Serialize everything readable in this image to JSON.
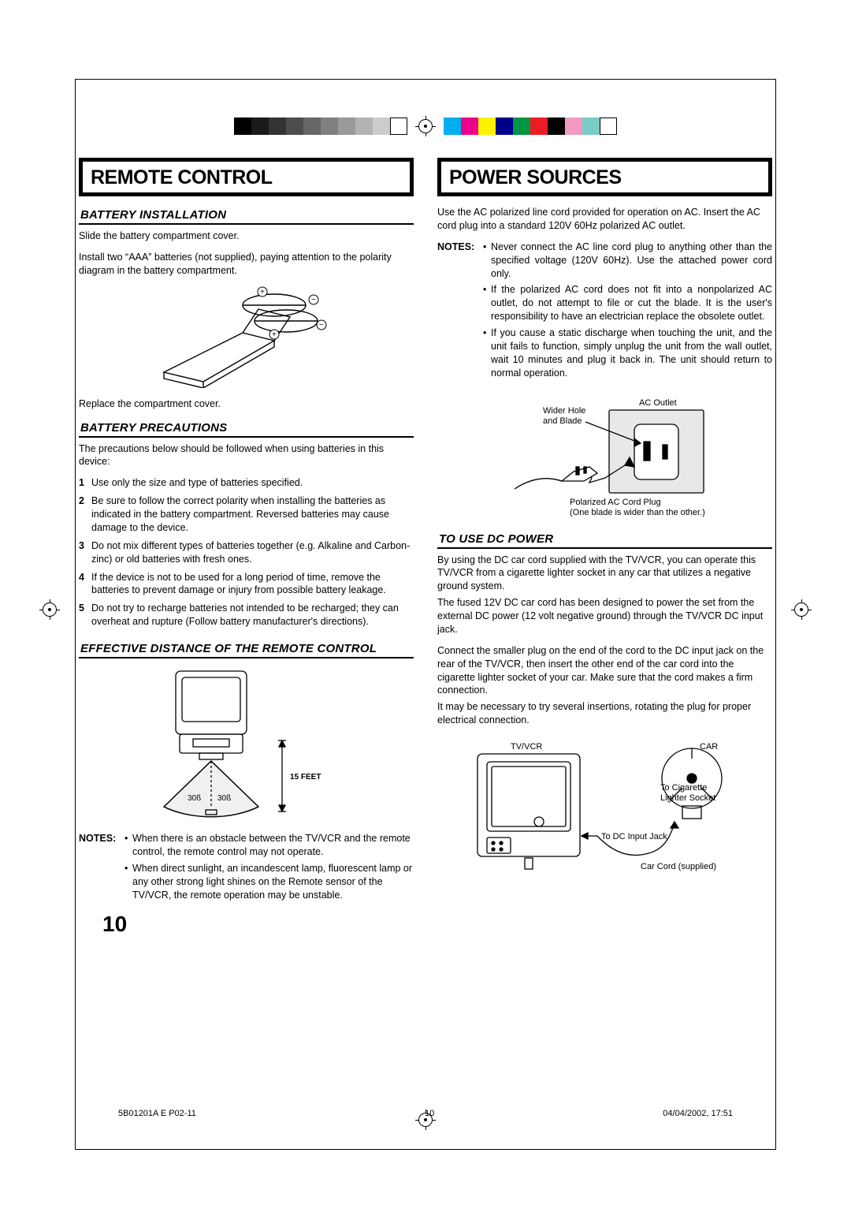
{
  "regbars_gray": [
    "#000000",
    "#1a1a1a",
    "#333333",
    "#4d4d4d",
    "#666666",
    "#808080",
    "#999999",
    "#b3b3b3",
    "#cccccc",
    "#ffffff"
  ],
  "regbars_color": [
    "#00aeef",
    "#ec008c",
    "#fff200",
    "#00008b",
    "#009444",
    "#ed1c24",
    "#000000",
    "#f49ac1",
    "#7accc8",
    "#ffffff"
  ],
  "left": {
    "title": "REMOTE CONTROL",
    "s1": {
      "heading": "BATTERY INSTALLATION",
      "p1": "Slide the battery compartment cover.",
      "p2": "Install two “AAA” batteries (not supplied), paying attention to the polarity diagram in the battery compartment.",
      "p3": "Replace the compartment cover."
    },
    "s2": {
      "heading": "BATTERY PRECAUTIONS",
      "intro": "The precautions below should be followed when using batteries in this device:",
      "items": [
        "Use only the size and type of batteries specified.",
        "Be sure to follow the correct polarity when installing the batteries as indicated in the battery compartment. Reversed batteries may cause damage to the device.",
        "Do not mix different types of batteries together (e.g. Alkaline and Carbon-zinc) or old batteries with fresh ones.",
        "If the device is not to be used for a long period of time, remove the batteries to prevent damage or injury from possible battery leakage.",
        "Do not try to recharge batteries not intended to be recharged; they can overheat and rupture (Follow battery manufacturer's directions)."
      ]
    },
    "s3": {
      "heading": "EFFECTIVE DISTANCE OF THE REMOTE CONTROL",
      "fig": {
        "angle_l": "30ß",
        "angle_r": "30ß",
        "dist": "15 FEET"
      },
      "notes": [
        "When there is an obstacle between the TV/VCR and the remote control, the remote control may not operate.",
        "When direct sunlight, an incandescent lamp, fluorescent lamp or any other strong light shines on the Remote sensor of the TV/VCR, the remote operation may be unstable."
      ]
    }
  },
  "right": {
    "title": "POWER SOURCES",
    "p1": "Use the AC polarized line cord provided for operation on AC. Insert the AC cord plug into a standard 120V 60Hz polarized AC outlet.",
    "notes1": [
      "Never connect the AC line cord plug to anything other than the specified voltage (120V 60Hz). Use the attached power cord only.",
      "If the polarized AC cord does not fit into a nonpolarized AC outlet, do not attempt to file or cut the blade. It is the user's responsibility to have an electrician replace the obsolete outlet.",
      "If you cause a static discharge when touching the unit, and the unit fails to function, simply unplug the unit from the wall outlet, wait 10 minutes and plug it back in. The unit should return to normal operation."
    ],
    "fig1": {
      "outlet": "AC Outlet",
      "wider": "Wider Hole and Blade",
      "plug": "Polarized AC Cord Plug",
      "plugnote": "(One blade is wider than the other.)"
    },
    "s2": {
      "heading": "TO USE DC POWER",
      "p1": "By using the DC car cord supplied with the TV/VCR, you can operate this TV/VCR from a cigarette lighter socket in any car that utilizes a negative ground system.",
      "p2": "The fused 12V DC car cord has been designed to power the set from the external DC power (12 volt negative ground) through the TV/VCR DC input jack.",
      "p3": "Connect the smaller plug on the end of the cord to the DC input jack on the rear of the TV/VCR, then insert the other end of the car cord into the cigarette lighter socket of your car. Make sure that the cord makes a firm connection.",
      "p4": "It may be necessary to try several insertions, rotating the plug for proper electrical connection.",
      "fig": {
        "tv": "TV/VCR",
        "car": "CAR",
        "cig": "To Cigarette Lighter Socket",
        "dc": "To DC Input Jack",
        "cord": "Car Cord (supplied)"
      }
    }
  },
  "pagenum": "10",
  "footer": {
    "l": "5B01201A E P02-11",
    "m": "10",
    "r": "04/04/2002, 17:51"
  }
}
